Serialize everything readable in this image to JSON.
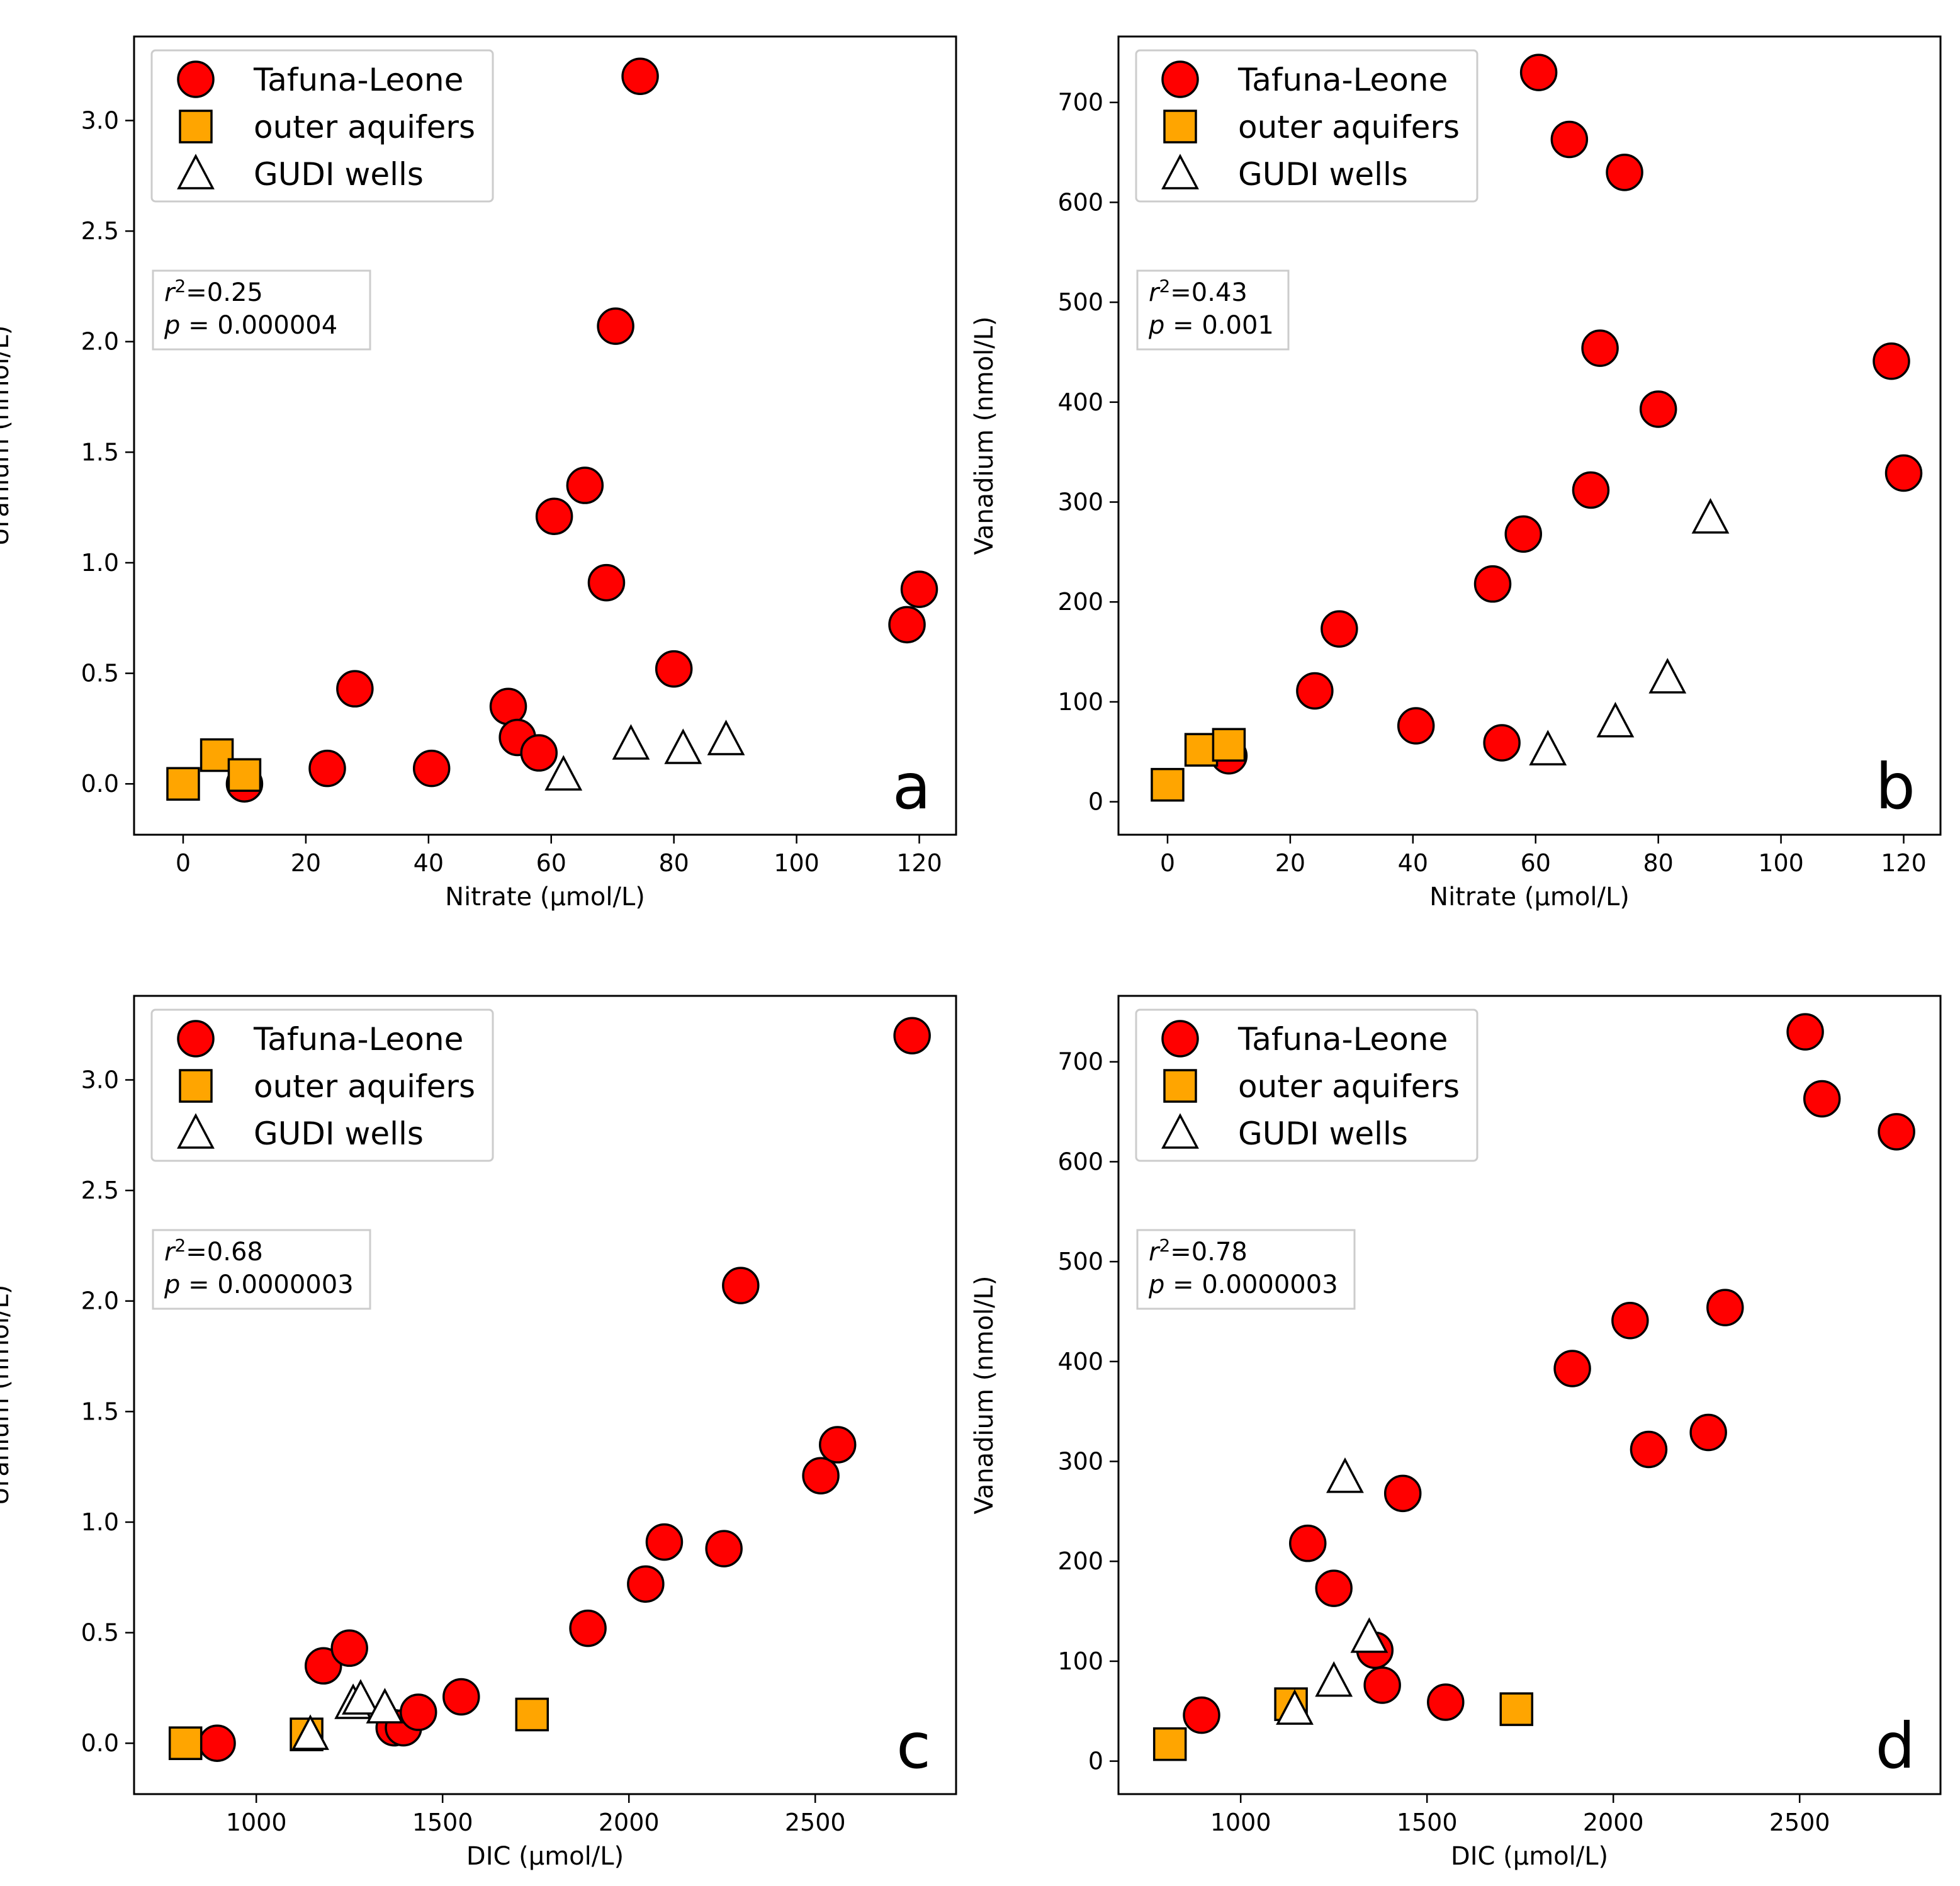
{
  "colors": {
    "tafuna": "#ff0000",
    "outer": "#ffa500",
    "gudi": "#ffffff",
    "edge": "#000000",
    "frame": "#000000",
    "legend_border": "#cccccc"
  },
  "legend": {
    "items": [
      {
        "name": "Tafuna-Leone",
        "marker": "circle"
      },
      {
        "name": "outer aquifers",
        "marker": "square"
      },
      {
        "name": "GUDI wells",
        "marker": "triangle"
      }
    ]
  },
  "chart_data": [
    {
      "type": "scatter",
      "letter": "a",
      "xlabel": "Nitrate (µmol/L)",
      "ylabel": "Uranium (nmol/L)",
      "xlim": [
        -8,
        126
      ],
      "ylim": [
        -0.23,
        3.38
      ],
      "xticks": [
        {
          "v": 0,
          "label": "0"
        },
        {
          "v": 20,
          "label": "20"
        },
        {
          "v": 40,
          "label": "40"
        },
        {
          "v": 60,
          "label": "60"
        },
        {
          "v": 80,
          "label": "80"
        },
        {
          "v": 100,
          "label": "100"
        },
        {
          "v": 120,
          "label": "120"
        }
      ],
      "yticks": [
        {
          "v": 0,
          "label": "0.0"
        },
        {
          "v": 0.5,
          "label": "0.5"
        },
        {
          "v": 1.0,
          "label": "1.0"
        },
        {
          "v": 1.5,
          "label": "1.5"
        },
        {
          "v": 2.0,
          "label": "2.0"
        },
        {
          "v": 2.5,
          "label": "2.5"
        },
        {
          "v": 3.0,
          "label": "3.0"
        }
      ],
      "stats": {
        "r2_prefix": "r",
        "r2_sup": "2",
        "r2_value": "=0.25",
        "p_prefix": "p",
        "p_value": " = 0.000004"
      },
      "series": [
        {
          "name": "Tafuna-Leone",
          "points": [
            [
              10,
              0.0
            ],
            [
              23.5,
              0.07
            ],
            [
              28,
              0.43
            ],
            [
              40.5,
              0.07
            ],
            [
              53,
              0.35
            ],
            [
              54.5,
              0.21
            ],
            [
              58,
              0.14
            ],
            [
              60.5,
              1.21
            ],
            [
              65.5,
              1.35
            ],
            [
              69,
              0.91
            ],
            [
              70.5,
              2.07
            ],
            [
              74.5,
              3.2
            ],
            [
              80,
              0.52
            ],
            [
              118,
              0.72
            ],
            [
              120,
              0.88
            ]
          ]
        },
        {
          "name": "outer aquifers",
          "points": [
            [
              0,
              0.0
            ],
            [
              5.5,
              0.13
            ],
            [
              10,
              0.04
            ]
          ]
        },
        {
          "name": "GUDI wells",
          "points": [
            [
              62,
              0.04
            ],
            [
              73,
              0.18
            ],
            [
              81.5,
              0.16
            ],
            [
              88.5,
              0.2
            ]
          ]
        }
      ]
    },
    {
      "type": "scatter",
      "letter": "b",
      "xlabel": "Nitrate (µmol/L)",
      "ylabel": "Vanadium (nmol/L)",
      "xlim": [
        -8,
        126
      ],
      "ylim": [
        -33,
        766
      ],
      "xticks": [
        {
          "v": 0,
          "label": "0"
        },
        {
          "v": 20,
          "label": "20"
        },
        {
          "v": 40,
          "label": "40"
        },
        {
          "v": 60,
          "label": "60"
        },
        {
          "v": 80,
          "label": "80"
        },
        {
          "v": 100,
          "label": "100"
        },
        {
          "v": 120,
          "label": "120"
        }
      ],
      "yticks": [
        {
          "v": 0,
          "label": "0"
        },
        {
          "v": 100,
          "label": "100"
        },
        {
          "v": 200,
          "label": "200"
        },
        {
          "v": 300,
          "label": "300"
        },
        {
          "v": 400,
          "label": "400"
        },
        {
          "v": 500,
          "label": "500"
        },
        {
          "v": 600,
          "label": "600"
        },
        {
          "v": 700,
          "label": "700"
        }
      ],
      "stats": {
        "r2_prefix": "r",
        "r2_sup": "2",
        "r2_value": "=0.43",
        "p_prefix": "p",
        "p_value": " = 0.001"
      },
      "series": [
        {
          "name": "Tafuna-Leone",
          "points": [
            [
              10,
              46
            ],
            [
              24,
              111
            ],
            [
              28,
              173
            ],
            [
              40.5,
              76
            ],
            [
              53,
              218
            ],
            [
              54.5,
              59
            ],
            [
              58,
              268
            ],
            [
              60.5,
              730
            ],
            [
              65.5,
              663
            ],
            [
              69,
              312
            ],
            [
              70.5,
              454
            ],
            [
              74.5,
              630
            ],
            [
              80,
              393
            ],
            [
              118,
              441
            ],
            [
              120,
              329
            ]
          ]
        },
        {
          "name": "outer aquifers",
          "points": [
            [
              0,
              17
            ],
            [
              5.5,
              52
            ],
            [
              10,
              57
            ]
          ]
        },
        {
          "name": "GUDI wells",
          "points": [
            [
              62,
              52
            ],
            [
              73,
              80
            ],
            [
              81.5,
              124
            ],
            [
              88.5,
              284
            ]
          ]
        }
      ]
    },
    {
      "type": "scatter",
      "letter": "c",
      "xlabel": "DIC (µmol/L)",
      "ylabel": "Uranium (nmol/L)",
      "xlim": [
        672,
        2878
      ],
      "ylim": [
        -0.23,
        3.38
      ],
      "xticks": [
        {
          "v": 1000,
          "label": "1000"
        },
        {
          "v": 1500,
          "label": "1500"
        },
        {
          "v": 2000,
          "label": "2000"
        },
        {
          "v": 2500,
          "label": "2500"
        }
      ],
      "yticks": [
        {
          "v": 0,
          "label": "0.0"
        },
        {
          "v": 0.5,
          "label": "0.5"
        },
        {
          "v": 1.0,
          "label": "1.0"
        },
        {
          "v": 1.5,
          "label": "1.5"
        },
        {
          "v": 2.0,
          "label": "2.0"
        },
        {
          "v": 2.5,
          "label": "2.5"
        },
        {
          "v": 3.0,
          "label": "3.0"
        }
      ],
      "stats": {
        "r2_prefix": "r",
        "r2_sup": "2",
        "r2_value": "=0.68",
        "p_prefix": "p",
        "p_value": " = 0.0000003"
      },
      "series": [
        {
          "name": "Tafuna-Leone",
          "points": [
            [
              895,
              0.0
            ],
            [
              1180,
              0.35
            ],
            [
              1250,
              0.43
            ],
            [
              1370,
              0.07
            ],
            [
              1395,
              0.07
            ],
            [
              1435,
              0.14
            ],
            [
              1550,
              0.21
            ],
            [
              1890,
              0.52
            ],
            [
              2045,
              0.72
            ],
            [
              2095,
              0.91
            ],
            [
              2255,
              0.88
            ],
            [
              2300,
              2.07
            ],
            [
              2515,
              1.21
            ],
            [
              2560,
              1.35
            ],
            [
              2760,
              3.2
            ]
          ]
        },
        {
          "name": "outer aquifers",
          "points": [
            [
              810,
              0.0
            ],
            [
              1135,
              0.04
            ],
            [
              1740,
              0.13
            ]
          ]
        },
        {
          "name": "GUDI wells",
          "points": [
            [
              1145,
              0.04
            ],
            [
              1260,
              0.18
            ],
            [
              1280,
              0.2
            ],
            [
              1345,
              0.16
            ]
          ]
        }
      ]
    },
    {
      "type": "scatter",
      "letter": "d",
      "xlabel": "DIC (µmol/L)",
      "ylabel": "Vanadium (nmol/L)",
      "xlim": [
        672,
        2878
      ],
      "ylim": [
        -33,
        766
      ],
      "xticks": [
        {
          "v": 1000,
          "label": "1000"
        },
        {
          "v": 1500,
          "label": "1500"
        },
        {
          "v": 2000,
          "label": "2000"
        },
        {
          "v": 2500,
          "label": "2500"
        }
      ],
      "yticks": [
        {
          "v": 0,
          "label": "0"
        },
        {
          "v": 100,
          "label": "100"
        },
        {
          "v": 200,
          "label": "200"
        },
        {
          "v": 300,
          "label": "300"
        },
        {
          "v": 400,
          "label": "400"
        },
        {
          "v": 500,
          "label": "500"
        },
        {
          "v": 600,
          "label": "600"
        },
        {
          "v": 700,
          "label": "700"
        }
      ],
      "stats": {
        "r2_prefix": "r",
        "r2_sup": "2",
        "r2_value": "=0.78",
        "p_prefix": "p",
        "p_value": " = 0.0000003"
      },
      "series": [
        {
          "name": "Tafuna-Leone",
          "points": [
            [
              895,
              46
            ],
            [
              1180,
              218
            ],
            [
              1250,
              173
            ],
            [
              1360,
              111
            ],
            [
              1380,
              76
            ],
            [
              1435,
              268
            ],
            [
              1550,
              59
            ],
            [
              1890,
              393
            ],
            [
              2045,
              441
            ],
            [
              2095,
              312
            ],
            [
              2255,
              329
            ],
            [
              2300,
              454
            ],
            [
              2515,
              730
            ],
            [
              2560,
              663
            ],
            [
              2760,
              630
            ]
          ]
        },
        {
          "name": "outer aquifers",
          "points": [
            [
              810,
              17
            ],
            [
              1135,
              57
            ],
            [
              1740,
              52
            ]
          ]
        },
        {
          "name": "GUDI wells",
          "points": [
            [
              1145,
              52
            ],
            [
              1250,
              80
            ],
            [
              1280,
              284
            ],
            [
              1345,
              124
            ]
          ]
        }
      ]
    }
  ]
}
